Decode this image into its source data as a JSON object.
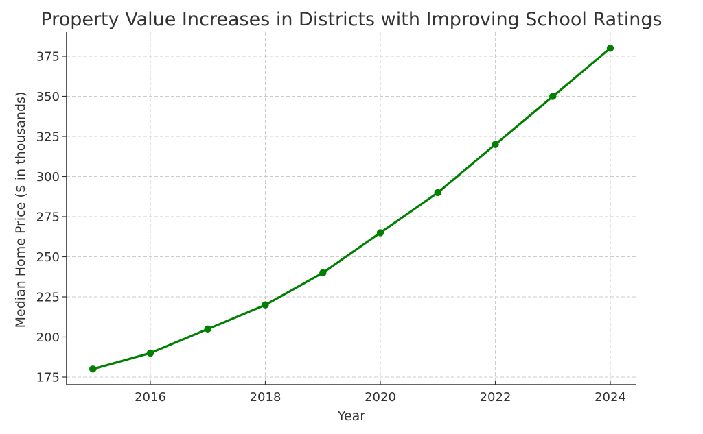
{
  "chart_data": {
    "type": "line",
    "title": "Property Value Increases in Districts with Improving School Ratings",
    "xlabel": "Year",
    "ylabel": "Median Home Price ($ in thousands)",
    "x": [
      2015,
      2016,
      2017,
      2018,
      2019,
      2020,
      2021,
      2022,
      2023,
      2024
    ],
    "series": [
      {
        "name": "Median Home Price",
        "values": [
          180,
          190,
          205,
          220,
          240,
          265,
          290,
          320,
          350,
          380
        ],
        "color": "#008000",
        "marker": "circle"
      }
    ],
    "xticks": [
      2016,
      2018,
      2020,
      2022,
      2024
    ],
    "yticks": [
      175,
      200,
      225,
      250,
      275,
      300,
      325,
      350,
      375
    ],
    "xlim": [
      2014.5,
      2024.45
    ],
    "ylim": [
      170,
      390
    ],
    "grid": true,
    "legend": null
  }
}
